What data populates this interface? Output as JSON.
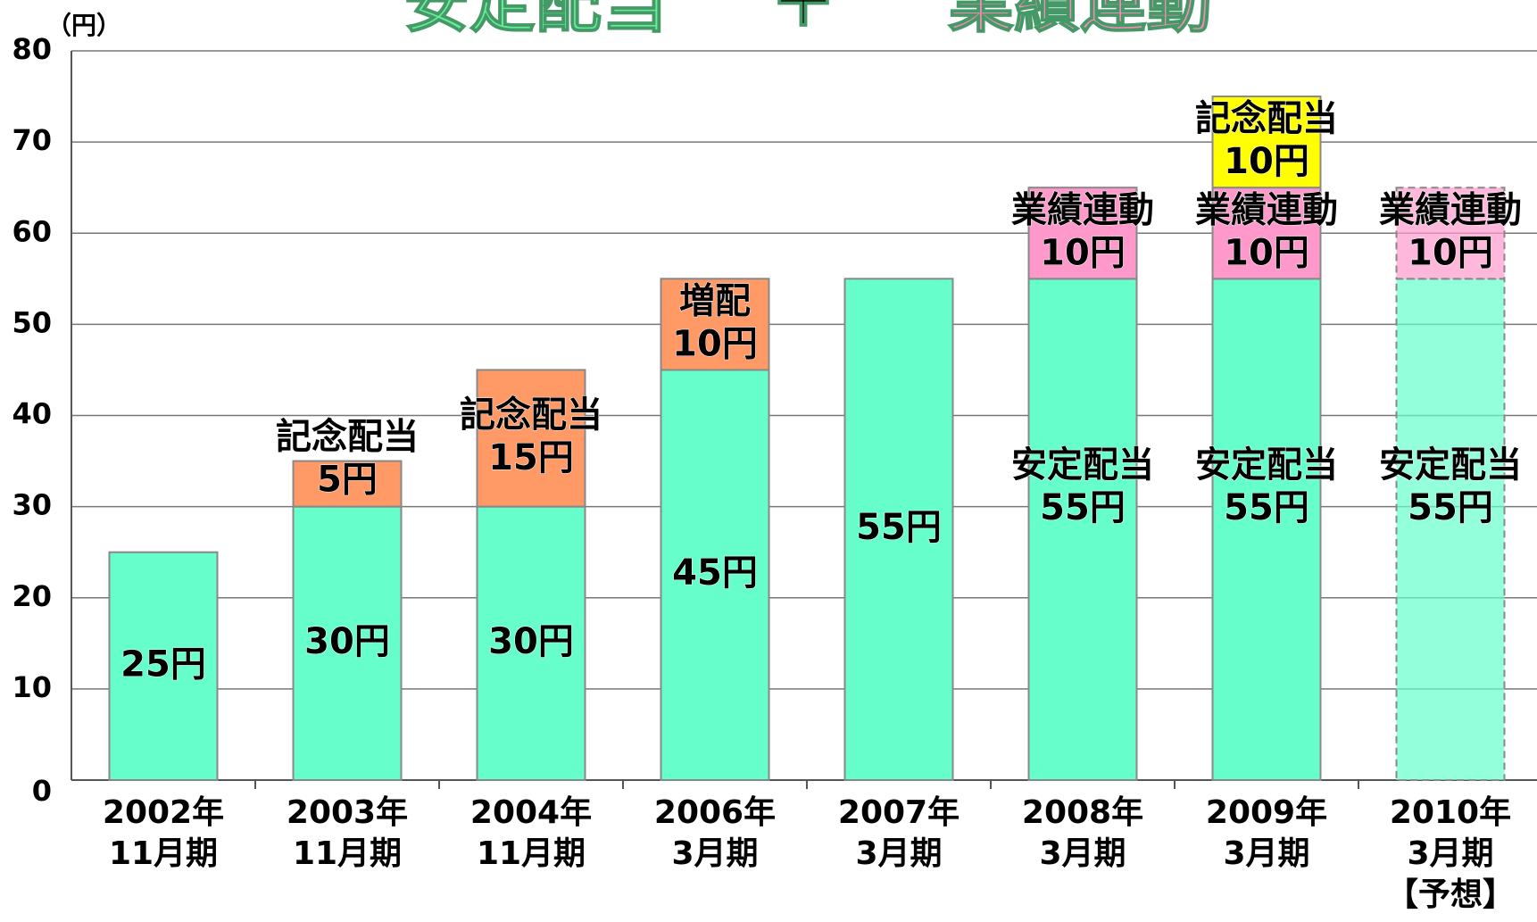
{
  "chart_data": {
    "type": "stacked_bar",
    "title": [
      "安定配当",
      "＋",
      "業績連動"
    ],
    "title_colors": [
      "#66ee99",
      "#000000",
      "#ff88bb"
    ],
    "ylabel": "（円）",
    "categories": [
      [
        "2002年",
        "11月期"
      ],
      [
        "2003年",
        "11月期"
      ],
      [
        "2004年",
        "11月期"
      ],
      [
        "2006年",
        "3月期"
      ],
      [
        "2007年",
        "3月期"
      ],
      [
        "2008年",
        "3月期"
      ],
      [
        "2009年",
        "3月期"
      ],
      [
        "2010年",
        "3月期",
        "【予想】"
      ]
    ],
    "series": [
      {
        "name": "安定配当",
        "color": "#66ffcc",
        "values": [
          25,
          30,
          30,
          45,
          55,
          55,
          55,
          55
        ],
        "value_labels": [
          [
            "25円"
          ],
          [
            "30円"
          ],
          [
            "30円"
          ],
          [
            "45円"
          ],
          [
            "55円"
          ],
          [
            "安定配当",
            "55円"
          ],
          [
            "安定配当",
            "55円"
          ],
          [
            "安定配当",
            "55円"
          ]
        ]
      },
      {
        "color": "#ff9966",
        "values": [
          null,
          5,
          15,
          10,
          null,
          null,
          null,
          null
        ],
        "value_labels": [
          null,
          [
            "記念配当",
            "5円"
          ],
          [
            "記念配当",
            "15円"
          ],
          [
            "増配",
            "10円"
          ],
          null,
          null,
          null,
          null
        ]
      },
      {
        "name": "業績連動",
        "color": "#ff99cc",
        "values": [
          null,
          null,
          null,
          null,
          null,
          10,
          10,
          10
        ],
        "value_labels": [
          null,
          null,
          null,
          null,
          null,
          [
            "業績連動",
            "10円"
          ],
          [
            "業績連動",
            "10円"
          ],
          [
            "業績連動",
            "10円"
          ]
        ]
      },
      {
        "color": "#ffff00",
        "values": [
          null,
          null,
          null,
          null,
          null,
          null,
          10,
          null
        ],
        "value_labels": [
          null,
          null,
          null,
          null,
          null,
          null,
          [
            "記念配当",
            "10円"
          ],
          null
        ]
      }
    ],
    "dashed_categories": [
      7
    ],
    "ylim": [
      0,
      80
    ],
    "yticks": [
      0,
      10,
      20,
      30,
      40,
      50,
      60,
      70,
      80
    ],
    "grid": true
  }
}
